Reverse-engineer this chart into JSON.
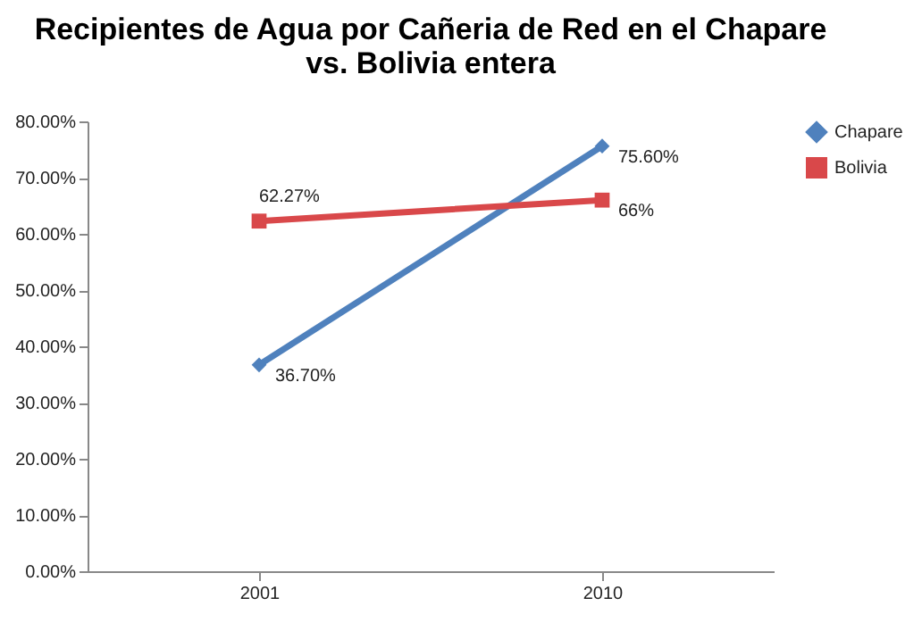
{
  "chart_data": {
    "type": "line",
    "title": "Recipientes de Agua por Cañeria de Red en el Chapare\nvs. Bolivia entera",
    "categories": [
      "2001",
      "2010"
    ],
    "series": [
      {
        "name": "Chapare",
        "color": "#4f81bd",
        "values": [
          36.7,
          75.6
        ],
        "value_labels": [
          "36.70%",
          "75.60%"
        ],
        "marker": "diamond"
      },
      {
        "name": "Bolivia",
        "color": "#d9484a",
        "values": [
          62.27,
          66
        ],
        "value_labels": [
          "62.27%",
          "66%"
        ],
        "marker": "square"
      }
    ],
    "ylim": [
      0,
      80
    ],
    "yticks": [
      {
        "value": 0,
        "label": "0.00%"
      },
      {
        "value": 10,
        "label": "10.00%"
      },
      {
        "value": 20,
        "label": "20.00%"
      },
      {
        "value": 30,
        "label": "30.00%"
      },
      {
        "value": 40,
        "label": "40.00%"
      },
      {
        "value": 50,
        "label": "50.00%"
      },
      {
        "value": 60,
        "label": "60.00%"
      },
      {
        "value": 70,
        "label": "70.00%"
      },
      {
        "value": 80,
        "label": "80.00%"
      }
    ],
    "legend": "right",
    "grid": false,
    "line_style": "solid"
  }
}
